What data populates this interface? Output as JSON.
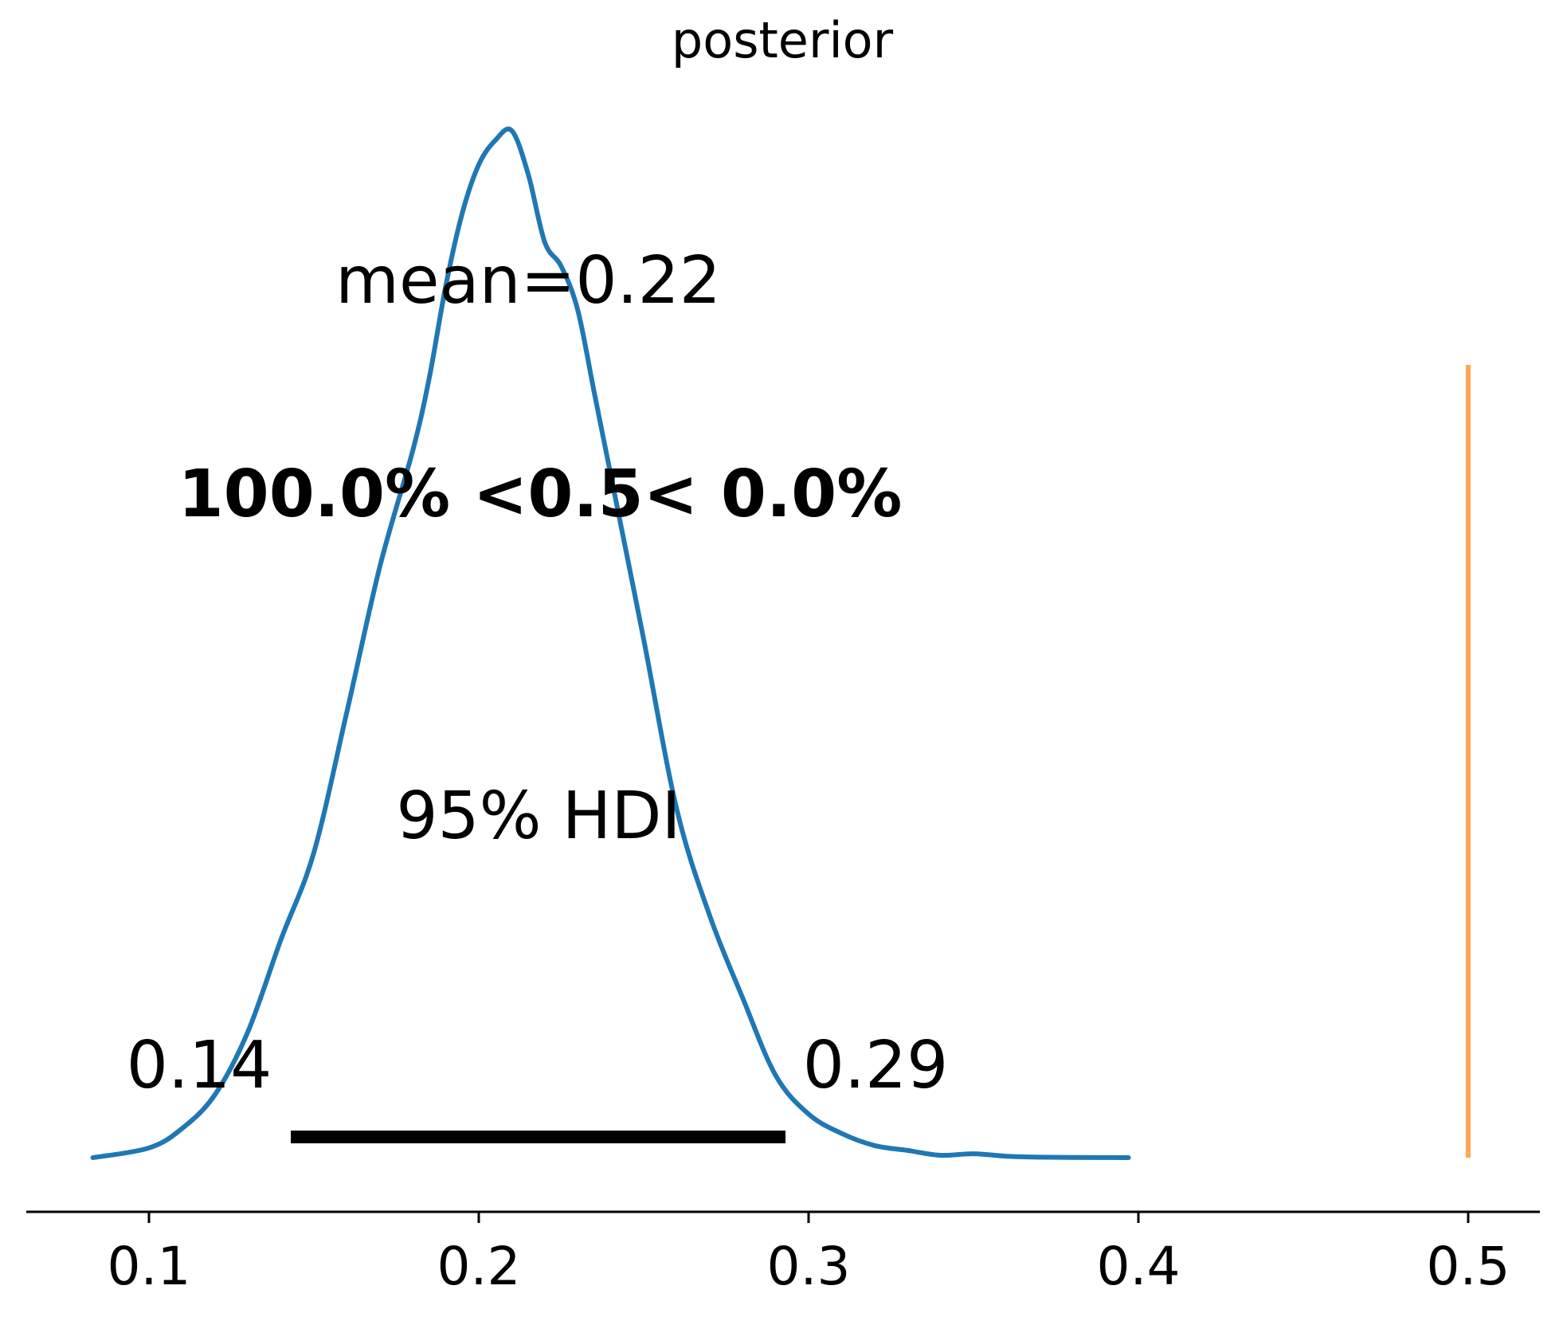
{
  "chart_data": {
    "type": "line",
    "title": "posterior",
    "xlabel": "",
    "ylabel": "",
    "xlim": [
      0.0636,
      0.5218
    ],
    "grid": false,
    "x_ticks": [
      0.1,
      0.2,
      0.3,
      0.4,
      0.5
    ],
    "x_tick_labels": [
      "0.1",
      "0.2",
      "0.3",
      "0.4",
      "0.5"
    ],
    "density_curve": {
      "color": "#1f77b4",
      "x": [
        0.083,
        0.1,
        0.11,
        0.12,
        0.13,
        0.14,
        0.15,
        0.16,
        0.17,
        0.18,
        0.185,
        0.19,
        0.195,
        0.2,
        0.205,
        0.21,
        0.215,
        0.22,
        0.225,
        0.23,
        0.235,
        0.24,
        0.25,
        0.26,
        0.27,
        0.28,
        0.29,
        0.3,
        0.31,
        0.32,
        0.33,
        0.34,
        0.35,
        0.36,
        0.37,
        0.38,
        0.397
      ],
      "y": [
        0.0,
        0.02,
        0.06,
        0.13,
        0.26,
        0.45,
        0.63,
        0.92,
        1.22,
        1.46,
        1.61,
        1.8,
        1.95,
        2.05,
        2.1,
        2.12,
        2.03,
        1.89,
        1.84,
        1.75,
        1.58,
        1.41,
        1.07,
        0.72,
        0.5,
        0.33,
        0.17,
        0.09,
        0.05,
        0.025,
        0.015,
        0.005,
        0.008,
        0.003,
        0.001,
        0.0005,
        0.0
      ]
    },
    "mean_label": "mean=0.22",
    "hdi": {
      "label": "95% HDI",
      "low": 0.143,
      "high": 0.293,
      "low_label": "0.14",
      "high_label": "0.29",
      "color": "#000000"
    },
    "reference": {
      "value": 0.5,
      "label": "100.0% <0.5< 0.0%",
      "color": "#ff7f0e"
    }
  }
}
